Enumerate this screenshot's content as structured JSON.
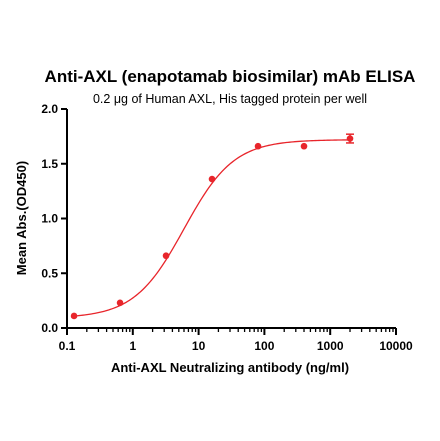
{
  "chart_data": {
    "type": "scatter",
    "title": "Anti-AXL (enapotamab biosimilar) mAb ELISA",
    "subtitle": "0.2 μg of Human AXL, His tagged protein per well",
    "xlabel": "Anti-AXL Neutralizing antibody (ng/ml)",
    "ylabel": "Mean Abs.(OD450)",
    "x_scale": "log",
    "xlim": [
      0.1,
      10000
    ],
    "ylim": [
      0.0,
      2.0
    ],
    "x_ticks": [
      0.1,
      1,
      10,
      100,
      1000,
      10000
    ],
    "x_tick_labels": [
      "0.1",
      "1",
      "10",
      "100",
      "1000",
      "10000"
    ],
    "y_ticks": [
      0.0,
      0.5,
      1.0,
      1.5,
      2.0
    ],
    "y_tick_labels": [
      "0.0",
      "0.5",
      "1.0",
      "1.5",
      "2.0"
    ],
    "grid": false,
    "series_color": "#e8252b",
    "series": [
      {
        "x": [
          0.128,
          0.64,
          3.2,
          16,
          80,
          400,
          2000
        ],
        "y": [
          0.11,
          0.23,
          0.66,
          1.36,
          1.66,
          1.66,
          1.73
        ],
        "y_err": [
          0,
          0,
          0,
          0,
          0,
          0,
          0.04
        ]
      }
    ],
    "fit": {
      "model": "4PL",
      "bottom": 0.09,
      "top": 1.72,
      "ec50": 6.0,
      "hill": 1.15
    }
  }
}
